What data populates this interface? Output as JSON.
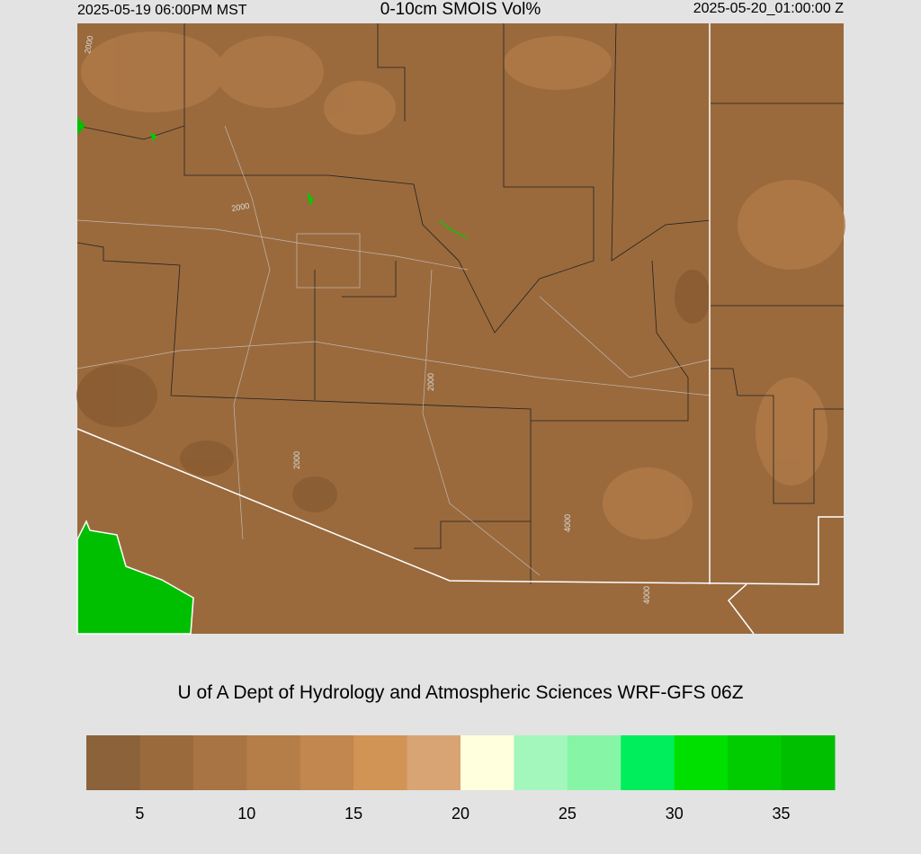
{
  "header": {
    "left": "2025-05-19 06:00PM MST",
    "center": "0-10cm SMOIS Vol%",
    "right": "2025-05-20_01:00:00 Z"
  },
  "map": {
    "contour_labels": [
      "2000",
      "2000",
      "2000",
      "2000",
      "4000",
      "4000"
    ]
  },
  "credit": "U of A Dept of Hydrology and Atmospheric Sciences WRF-GFS 06Z",
  "colorbar": {
    "lim": [
      2.5,
      37.5
    ],
    "ticks": [
      5,
      10,
      15,
      20,
      25,
      30,
      35
    ],
    "colors": [
      "#8b6239",
      "#9a6a3d",
      "#a87444",
      "#b57e48",
      "#c2874e",
      "#d19455",
      "#d8a474",
      "#ffffdd",
      "#a3f7bc",
      "#86f5a5",
      "#00ed5c",
      "#00e000",
      "#00cc00",
      "#00bf00"
    ]
  }
}
